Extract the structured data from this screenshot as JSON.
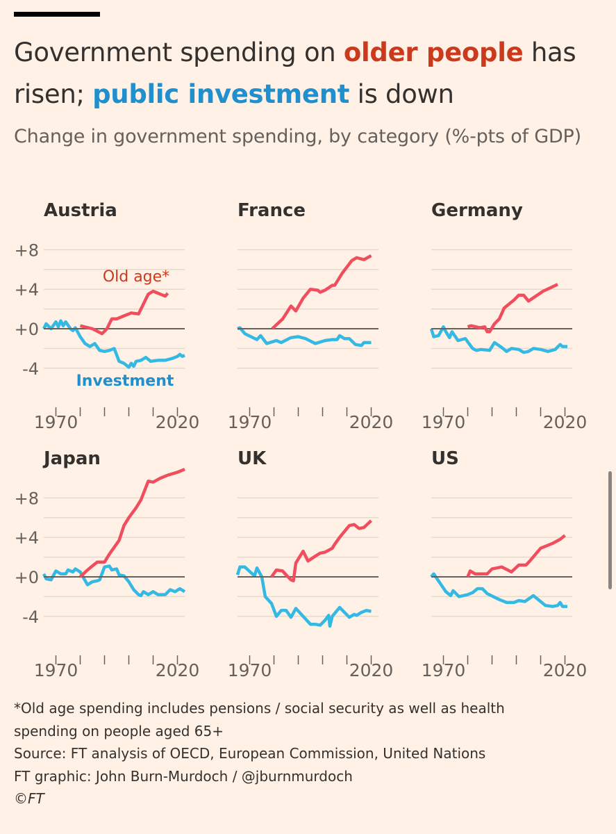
{
  "title": {
    "part1": "Government spending on ",
    "highlight_old": "older people",
    "part2": " has risen; ",
    "highlight_invest": "public investment",
    "part3": " is down"
  },
  "subtitle": "Change in government spending, by category (%-pts of GDP)",
  "footer": {
    "note": "*Old age spending includes pensions / social security as well as health spending on people aged 65+",
    "source": "Source: FT analysis of OECD, European Commission, United Nations",
    "credit": "FT graphic: John Burn-Murdoch / @jburnmurdoch",
    "copyright": "©FT"
  },
  "colors": {
    "background": "#fff1e5",
    "old_age_line": "#f04e5e",
    "investment_line": "#33b9e3",
    "old_age_label": "#cc3a1d",
    "investment_label": "#1f8fce",
    "zero_line": "#66605c",
    "grid": "#e6d9ce"
  },
  "chart_data": {
    "type": "line",
    "layout": "small-multiples 3x2",
    "grid": true,
    "ylim": [
      -5,
      8
    ],
    "yticks": [
      8,
      4,
      0,
      -4
    ],
    "ytick_labels": [
      "+8",
      "+4",
      "+0",
      "-4"
    ],
    "xticks": [
      1970,
      1980,
      1990,
      2000,
      2010,
      2020
    ],
    "xtick_labels": [
      "1970",
      "2020"
    ],
    "annotations": {
      "old_age": "Old age*",
      "investment": "Investment"
    },
    "panels": [
      {
        "title": "Austria",
        "investment": [
          [
            1965,
            0
          ],
          [
            1966,
            0.5
          ],
          [
            1968,
            0
          ],
          [
            1970,
            0.7
          ],
          [
            1971,
            0.2
          ],
          [
            1972,
            0.8
          ],
          [
            1973,
            0.3
          ],
          [
            1974,
            0.7
          ],
          [
            1976,
            0
          ],
          [
            1977,
            -0.2
          ],
          [
            1978,
            0.1
          ],
          [
            1980,
            -0.8
          ],
          [
            1982,
            -1.5
          ],
          [
            1984,
            -1.8
          ],
          [
            1986,
            -1.5
          ],
          [
            1988,
            -2.2
          ],
          [
            1990,
            -2.3
          ],
          [
            1992,
            -2.2
          ],
          [
            1994,
            -2.0
          ],
          [
            1996,
            -3.3
          ],
          [
            1998,
            -3.5
          ],
          [
            2000,
            -3.9
          ],
          [
            2001,
            -3.5
          ],
          [
            2002,
            -3.8
          ],
          [
            2003,
            -3.3
          ],
          [
            2005,
            -3.2
          ],
          [
            2007,
            -2.9
          ],
          [
            2009,
            -3.3
          ],
          [
            2012,
            -3.2
          ],
          [
            2015,
            -3.2
          ],
          [
            2018,
            -3.0
          ],
          [
            2020,
            -2.8
          ],
          [
            2021,
            -2.6
          ],
          [
            2022,
            -2.8
          ],
          [
            2023,
            -2.7
          ]
        ],
        "old_age": [
          [
            1980,
            0.3
          ],
          [
            1985,
            0
          ],
          [
            1989,
            -0.5
          ],
          [
            1991,
            0
          ],
          [
            1993,
            1.0
          ],
          [
            1995,
            1.0
          ],
          [
            1998,
            1.3
          ],
          [
            2001,
            1.6
          ],
          [
            2004,
            1.5
          ],
          [
            2008,
            3.5
          ],
          [
            2010,
            3.8
          ],
          [
            2013,
            3.5
          ],
          [
            2015,
            3.3
          ],
          [
            2016,
            3.6
          ]
        ]
      },
      {
        "title": "France",
        "investment": [
          [
            1965,
            0
          ],
          [
            1966,
            0.1
          ],
          [
            1968,
            -0.5
          ],
          [
            1973,
            -1.1
          ],
          [
            1974.5,
            -0.7
          ],
          [
            1977,
            -1.5
          ],
          [
            1981,
            -1.2
          ],
          [
            1983,
            -1.4
          ],
          [
            1987,
            -0.9
          ],
          [
            1990,
            -0.8
          ],
          [
            1993,
            -1.0
          ],
          [
            1997,
            -1.5
          ],
          [
            2001,
            -1.2
          ],
          [
            2004,
            -1.1
          ],
          [
            2006,
            -1.1
          ],
          [
            2007,
            -0.7
          ],
          [
            2009,
            -1.0
          ],
          [
            2011,
            -1.0
          ],
          [
            2013.5,
            -1.6
          ],
          [
            2016,
            -1.7
          ],
          [
            2017,
            -1.4
          ],
          [
            2020,
            -1.4
          ]
        ],
        "old_age": [
          [
            1979.3,
            0
          ],
          [
            1983.6,
            1.0
          ],
          [
            1987,
            2.3
          ],
          [
            1989,
            1.8
          ],
          [
            1992,
            3.1
          ],
          [
            1995,
            4.0
          ],
          [
            1998,
            3.9
          ],
          [
            1999,
            3.7
          ],
          [
            2001,
            3.9
          ],
          [
            2004,
            4.4
          ],
          [
            2005,
            4.4
          ],
          [
            2008,
            5.6
          ],
          [
            2012,
            6.9
          ],
          [
            2014,
            7.2
          ],
          [
            2017,
            7.0
          ],
          [
            2020,
            7.4
          ]
        ]
      },
      {
        "title": "Germany",
        "investment": [
          [
            1965,
            0
          ],
          [
            1966,
            -0.8
          ],
          [
            1968,
            -0.7
          ],
          [
            1970,
            0.2
          ],
          [
            1971,
            -0.3
          ],
          [
            1972.5,
            -0.9
          ],
          [
            1973.5,
            -0.3
          ],
          [
            1976,
            -1.2
          ],
          [
            1979,
            -1.0
          ],
          [
            1982,
            -2.0
          ],
          [
            1983.6,
            -2.2
          ],
          [
            1985.5,
            -2.1
          ],
          [
            1989,
            -2.2
          ],
          [
            1991,
            -1.4
          ],
          [
            1994,
            -1.9
          ],
          [
            1996,
            -2.3
          ],
          [
            1998,
            -2.0
          ],
          [
            2001,
            -2.1
          ],
          [
            2003,
            -2.4
          ],
          [
            2005,
            -2.3
          ],
          [
            2007,
            -2.0
          ],
          [
            2010,
            -2.1
          ],
          [
            2013,
            -2.3
          ],
          [
            2016,
            -2.1
          ],
          [
            2018,
            -1.6
          ],
          [
            2019,
            -1.8
          ],
          [
            2021,
            -1.8
          ]
        ],
        "old_age": [
          [
            1980,
            0.2
          ],
          [
            1981.4,
            0.3
          ],
          [
            1985,
            0.1
          ],
          [
            1987,
            0.2
          ],
          [
            1988,
            -0.3
          ],
          [
            1989,
            -0.3
          ],
          [
            1991,
            0.5
          ],
          [
            1993,
            1.0
          ],
          [
            1995,
            2.1
          ],
          [
            1997,
            2.5
          ],
          [
            1999,
            2.9
          ],
          [
            2001,
            3.4
          ],
          [
            2003,
            3.4
          ],
          [
            2005,
            2.8
          ],
          [
            2008,
            3.3
          ],
          [
            2011,
            3.8
          ],
          [
            2013.6,
            4.1
          ],
          [
            2017,
            4.5
          ]
        ]
      },
      {
        "title": "Japan",
        "investment": [
          [
            1965,
            0.3
          ],
          [
            1966,
            -0.2
          ],
          [
            1968,
            -0.3
          ],
          [
            1970,
            0.6
          ],
          [
            1972,
            0.3
          ],
          [
            1974,
            0.3
          ],
          [
            1975,
            0.7
          ],
          [
            1977,
            0.5
          ],
          [
            1978,
            0.8
          ],
          [
            1980,
            0.5
          ],
          [
            1983,
            -0.8
          ],
          [
            1985,
            -0.5
          ],
          [
            1987,
            -0.4
          ],
          [
            1988,
            -0.3
          ],
          [
            1990,
            1.0
          ],
          [
            1992,
            1.1
          ],
          [
            1993,
            0.7
          ],
          [
            1995,
            0.8
          ],
          [
            1996,
            0.2
          ],
          [
            1998,
            0.1
          ],
          [
            2000,
            -0.5
          ],
          [
            2002,
            -1.3
          ],
          [
            2004,
            -1.8
          ],
          [
            2005,
            -1.9
          ],
          [
            2006,
            -1.5
          ],
          [
            2008,
            -1.8
          ],
          [
            2010,
            -1.5
          ],
          [
            2012,
            -1.8
          ],
          [
            2015,
            -1.8
          ],
          [
            2017,
            -1.3
          ],
          [
            2019,
            -1.5
          ],
          [
            2021,
            -1.2
          ],
          [
            2023,
            -1.5
          ]
        ],
        "old_age": [
          [
            1980,
            0
          ],
          [
            1983,
            0.7
          ],
          [
            1985,
            1.1
          ],
          [
            1987,
            1.5
          ],
          [
            1990,
            1.5
          ],
          [
            1992,
            2.3
          ],
          [
            1994,
            3.0
          ],
          [
            1996,
            3.7
          ],
          [
            1998,
            5.2
          ],
          [
            2000,
            6.0
          ],
          [
            2003,
            7.0
          ],
          [
            2005,
            7.8
          ],
          [
            2008,
            9.7
          ],
          [
            2010,
            9.6
          ],
          [
            2013,
            10.0
          ],
          [
            2016,
            10.3
          ],
          [
            2020,
            10.6
          ],
          [
            2023,
            10.9
          ]
        ]
      },
      {
        "title": "UK",
        "investment": [
          [
            1965,
            0.2
          ],
          [
            1966,
            1.0
          ],
          [
            1968,
            1.0
          ],
          [
            1972,
            0.1
          ],
          [
            1973,
            0.9
          ],
          [
            1975,
            0
          ],
          [
            1976.4,
            -2.0
          ],
          [
            1979,
            -2.7
          ],
          [
            1981,
            -4.0
          ],
          [
            1983,
            -3.4
          ],
          [
            1985,
            -3.4
          ],
          [
            1987,
            -4.1
          ],
          [
            1989,
            -3.2
          ],
          [
            1992,
            -4.0
          ],
          [
            1995,
            -4.8
          ],
          [
            1997,
            -4.8
          ],
          [
            1999,
            -4.9
          ],
          [
            2001,
            -4.4
          ],
          [
            2002.5,
            -3.9
          ],
          [
            2003,
            -5.0
          ],
          [
            2004,
            -4.0
          ],
          [
            2007,
            -3.1
          ],
          [
            2011,
            -4.1
          ],
          [
            2013,
            -3.8
          ],
          [
            2014,
            -3.9
          ],
          [
            2016,
            -3.6
          ],
          [
            2018,
            -3.4
          ],
          [
            2020,
            -3.5
          ]
        ],
        "old_age": [
          [
            1979,
            0
          ],
          [
            1981,
            0.7
          ],
          [
            1983.5,
            0.6
          ],
          [
            1985,
            0.2
          ],
          [
            1987,
            -0.3
          ],
          [
            1988,
            -0.4
          ],
          [
            1989,
            1.4
          ],
          [
            1992,
            2.6
          ],
          [
            1994,
            1.6
          ],
          [
            1997,
            2.1
          ],
          [
            1999,
            2.4
          ],
          [
            2001,
            2.5
          ],
          [
            2004,
            2.9
          ],
          [
            2005,
            3.3
          ],
          [
            2007,
            4.0
          ],
          [
            2011,
            5.2
          ],
          [
            2013,
            5.3
          ],
          [
            2015,
            4.9
          ],
          [
            2017,
            5.0
          ],
          [
            2020,
            5.7
          ]
        ]
      },
      {
        "title": "US",
        "investment": [
          [
            1965,
            0
          ],
          [
            1966,
            0.3
          ],
          [
            1971,
            -1.5
          ],
          [
            1973,
            -1.9
          ],
          [
            1974,
            -1.4
          ],
          [
            1976.4,
            -2.0
          ],
          [
            1980,
            -1.8
          ],
          [
            1982,
            -1.6
          ],
          [
            1984,
            -1.2
          ],
          [
            1986,
            -1.2
          ],
          [
            1988,
            -1.7
          ],
          [
            1993,
            -2.3
          ],
          [
            1996,
            -2.6
          ],
          [
            1999,
            -2.6
          ],
          [
            2001,
            -2.4
          ],
          [
            2003.5,
            -2.5
          ],
          [
            2007,
            -1.9
          ],
          [
            2012,
            -2.9
          ],
          [
            2015,
            -3.0
          ],
          [
            2017,
            -2.9
          ],
          [
            2018,
            -2.6
          ],
          [
            2019,
            -3.0
          ],
          [
            2021,
            -3.0
          ]
        ],
        "old_age": [
          [
            1980,
            0
          ],
          [
            1981,
            0.6
          ],
          [
            1983,
            0.3
          ],
          [
            1988,
            0.3
          ],
          [
            1990,
            0.8
          ],
          [
            1994,
            1.0
          ],
          [
            1998,
            0.5
          ],
          [
            2001,
            1.2
          ],
          [
            2004,
            1.2
          ],
          [
            2005.5,
            1.6
          ],
          [
            2010,
            2.9
          ],
          [
            2015,
            3.4
          ],
          [
            2018,
            3.8
          ],
          [
            2020,
            4.2
          ]
        ]
      }
    ]
  }
}
